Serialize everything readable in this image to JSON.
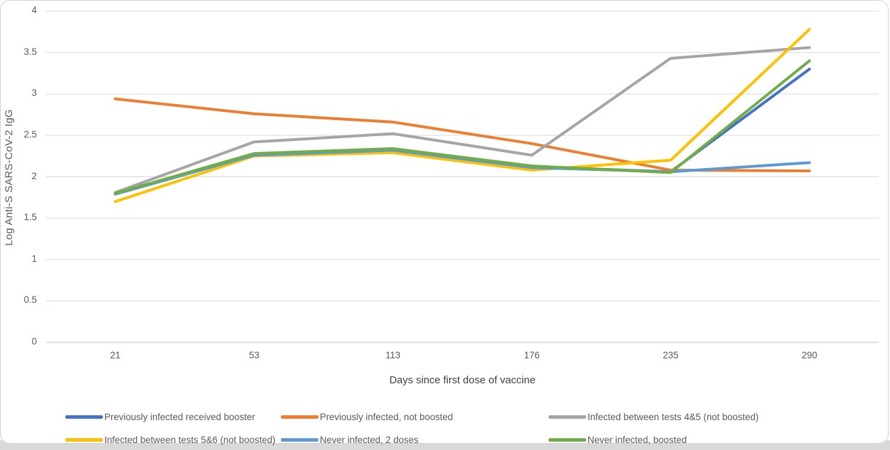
{
  "chart_data": {
    "type": "line",
    "title": "",
    "xlabel": "Days since first dose of vaccine",
    "ylabel": "Log Anti-S SARS-CoV-2 IgG",
    "x_categories": [
      "21",
      "53",
      "113",
      "176",
      "235",
      "290"
    ],
    "y_ticks": [
      "4",
      "3.5",
      "3",
      "2.5",
      "2",
      "1.5",
      "1",
      "0.5",
      "0"
    ],
    "ylim": [
      0,
      4
    ],
    "grid": true,
    "legend_position": "bottom",
    "series": [
      {
        "name": "Previously infected received booster",
        "color": "#4472C4",
        "values": [
          1.8,
          2.27,
          2.33,
          2.12,
          2.06,
          3.3
        ]
      },
      {
        "name": "Previously infected, not boosted",
        "color": "#ED7D31",
        "values": [
          2.94,
          2.76,
          2.66,
          2.4,
          2.08,
          2.07
        ]
      },
      {
        "name": "Infected between tests 4&5 (not boosted)",
        "color": "#A5A5A5",
        "values": [
          1.81,
          2.42,
          2.52,
          2.26,
          3.43,
          3.56
        ]
      },
      {
        "name": "Infected between tests 5&6 (not boosted)",
        "color": "#FFC000",
        "values": [
          1.7,
          2.25,
          2.29,
          2.08,
          2.2,
          3.78
        ]
      },
      {
        "name": "Never infected, 2 doses",
        "color": "#5B9BD5",
        "values": [
          1.79,
          2.26,
          2.32,
          2.11,
          2.06,
          2.17
        ]
      },
      {
        "name": "Never infected, boosted",
        "color": "#70AD47",
        "values": [
          1.8,
          2.28,
          2.34,
          2.13,
          2.05,
          3.4
        ]
      }
    ],
    "colors": {
      "gridline": "#d9d9d9",
      "axis_line": "#bfbfbf",
      "tick_text": "#595959"
    }
  }
}
